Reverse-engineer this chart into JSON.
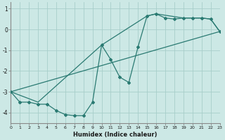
{
  "xlabel": "Humidex (Indice chaleur)",
  "background_color": "#cce8e5",
  "grid_color": "#a8ceca",
  "line_color": "#2a7a72",
  "x_min": 0,
  "x_max": 23,
  "y_min": -4.5,
  "y_max": 1.3,
  "main_x": [
    0,
    1,
    2,
    3,
    4,
    5,
    6,
    7,
    8,
    9,
    10,
    11,
    12,
    13,
    14,
    15,
    16,
    17,
    18,
    19,
    20,
    21,
    22,
    23
  ],
  "main_y": [
    -3.0,
    -3.5,
    -3.5,
    -3.6,
    -3.6,
    -3.9,
    -4.1,
    -4.15,
    -4.15,
    -3.5,
    -0.75,
    -1.45,
    -2.3,
    -2.55,
    -0.85,
    0.65,
    0.75,
    0.55,
    0.5,
    0.55,
    0.55,
    0.55,
    0.5,
    -0.1
  ],
  "line1_x": [
    0,
    23
  ],
  "line1_y": [
    -3.0,
    -0.1
  ],
  "line2_x": [
    0,
    3,
    10,
    15,
    16,
    19,
    20,
    21,
    22,
    23
  ],
  "line2_y": [
    -3.0,
    -3.5,
    -0.75,
    0.65,
    0.75,
    0.55,
    0.55,
    0.55,
    0.5,
    -0.1
  ],
  "yticks": [
    1,
    0,
    -1,
    -2,
    -3,
    -4
  ]
}
